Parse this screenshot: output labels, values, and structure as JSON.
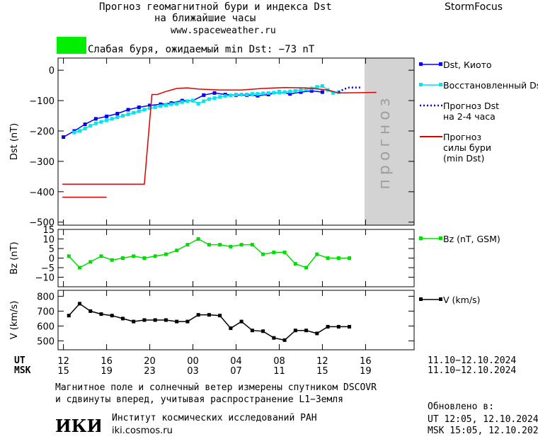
{
  "header": {
    "title_line1": "Прогноз геомагнитной бури и индекса Dst",
    "title_line2": "на ближайшие часы",
    "url": "www.spaceweather.ru",
    "brand": "StormFocus",
    "storm_text": "Слабая буря, ожидаемый min Dst: −73 nT",
    "storm_color": "#00ee00"
  },
  "footer": {
    "line1": "Магнитное поле и солнечный ветер измерены спутником DSCOVR",
    "line2": "и сдвинуты вперед, учитывая распространение L1−Земля",
    "updated_label": "Обновлено в:",
    "updated_ut": "UT   12:05, 12.10.2024",
    "updated_msk": "MSK 15:05, 12.10.2024",
    "institute": "Институт космических исследований РАН",
    "site": "iki.cosmos.ru",
    "logo_text": "ИКИ"
  },
  "chart_data": [
    {
      "type": "line",
      "ylabel": "Dst (nT)",
      "ylim": [
        -510,
        40
      ],
      "yticks": [
        0,
        -100,
        -200,
        -300,
        -400,
        -500
      ],
      "ytick_labels": [
        "0",
        "−100",
        "−200",
        "−300",
        "−400",
        "−500"
      ],
      "forecast_band": {
        "x": [
          12.0,
          13.75
        ],
        "label": "прогноз",
        "color": "#d3d3d3"
      },
      "series": [
        {
          "name": "Dst, Киото",
          "color": "#0000ff",
          "style": "line-square",
          "x": [
            -0.5,
            0.5,
            1.5,
            2.5,
            3.5,
            4.5,
            5.5,
            6.5,
            7.5,
            8.5,
            9.5,
            10.5,
            11.5,
            12.5,
            13.5,
            14.5,
            15.5,
            16.5,
            17.5,
            18.5,
            19.5,
            20.5,
            21.5,
            22.5,
            23.5
          ],
          "y": [
            -220,
            -200,
            -178,
            -160,
            -152,
            -143,
            -130,
            -122,
            -116,
            -112,
            -108,
            -100,
            -100,
            -82,
            -75,
            -80,
            -82,
            -82,
            -84,
            -80,
            -72,
            -78,
            -72,
            -68,
            -72
          ]
        },
        {
          "name": "Восстановленный Dst",
          "color": "#00e5ee",
          "style": "line-square",
          "x": [
            0.5,
            1.0,
            1.5,
            2.0,
            2.5,
            3.0,
            3.5,
            4.0,
            4.5,
            5.0,
            5.5,
            6.0,
            6.5,
            7.0,
            7.5,
            8.0,
            8.5,
            9.0,
            9.5,
            10.0,
            10.5,
            11.0,
            11.5,
            12.0,
            12.5,
            13.0,
            13.5,
            14.0,
            14.5,
            15.0,
            15.5,
            16.0,
            16.5,
            17.0,
            17.5,
            18.0,
            18.5,
            19.0,
            19.5,
            20.0,
            20.5,
            21.0,
            21.5,
            22.0,
            22.5,
            23.0,
            23.5,
            24.0,
            24.5,
            25.0
          ],
          "y": [
            -205,
            -200,
            -192,
            -183,
            -175,
            -170,
            -165,
            -160,
            -155,
            -150,
            -145,
            -140,
            -135,
            -130,
            -125,
            -122,
            -118,
            -115,
            -112,
            -110,
            -105,
            -102,
            -100,
            -110,
            -102,
            -95,
            -92,
            -88,
            -85,
            -83,
            -80,
            -80,
            -80,
            -78,
            -78,
            -76,
            -75,
            -74,
            -73,
            -72,
            -70,
            -68,
            -65,
            -63,
            -60,
            -55,
            -52,
            -65,
            -75,
            -72
          ]
        },
        {
          "name": "Прогноз Dst\nна 2-4 часа",
          "color": "#0000cc",
          "style": "dotted",
          "x": [
            25.0,
            25.5,
            26.0,
            26.5,
            27.0
          ],
          "y": [
            -72,
            -62,
            -57,
            -57,
            -57
          ]
        },
        {
          "name": "Прогноз\nсилы бури\n(min Dst)",
          "color": "#dd0000",
          "style": "step",
          "x": [
            -0.6,
            3.5,
            7.0,
            7.7,
            8.2,
            9.0,
            10.0,
            11.0,
            12.0,
            14.0,
            16.0,
            18.0,
            20.0,
            22.0,
            24.0,
            25.0,
            28.5
          ],
          "y": [
            -375,
            -375,
            -375,
            -80,
            -80,
            -70,
            -60,
            -58,
            -62,
            -65,
            -65,
            -60,
            -57,
            -58,
            -65,
            -75,
            -73
          ]
        },
        {
          "name": "",
          "color": "#dd0000",
          "style": "line",
          "x": [
            -0.6,
            3.5
          ],
          "y": [
            -418,
            -418
          ]
        }
      ]
    },
    {
      "type": "line",
      "ylabel": "Bz (nT)",
      "ylim": [
        -15,
        15
      ],
      "yticks": [
        15,
        10,
        5,
        0,
        -5,
        -10
      ],
      "ytick_labels": [
        "15",
        "10",
        "5",
        "0",
        "−5",
        "−10"
      ],
      "series": [
        {
          "name": "Bz (nT, GSM)",
          "color": "#00dd00",
          "style": "line-square",
          "x": [
            0,
            1,
            2,
            3,
            4,
            5,
            6,
            7,
            8,
            9,
            10,
            11,
            12,
            13,
            14,
            15,
            16,
            17,
            18,
            19,
            20,
            21,
            22,
            23,
            24,
            25,
            26
          ],
          "y": [
            1,
            -5,
            -2,
            1,
            -1,
            0,
            1,
            0,
            1,
            2,
            4,
            7,
            10,
            7,
            7,
            6,
            7,
            7,
            2,
            3,
            3,
            -3,
            -5,
            2,
            0,
            0,
            0
          ]
        }
      ]
    },
    {
      "type": "line",
      "ylabel": "V (km/s)",
      "ylim": [
        440,
        840
      ],
      "yticks": [
        800,
        700,
        600,
        500
      ],
      "ytick_labels": [
        "800",
        "700",
        "600",
        "500"
      ],
      "series": [
        {
          "name": "V (km/s)",
          "color": "#000000",
          "style": "line-square",
          "x": [
            0,
            1,
            2,
            3,
            4,
            5,
            6,
            7,
            8,
            9,
            10,
            11,
            12,
            13,
            14,
            15,
            16,
            17,
            18,
            19,
            20,
            21,
            22,
            23,
            24,
            25,
            26
          ],
          "y": [
            670,
            750,
            700,
            680,
            670,
            650,
            630,
            640,
            640,
            640,
            630,
            630,
            675,
            675,
            670,
            585,
            630,
            570,
            565,
            520,
            505,
            570,
            570,
            550,
            595,
            595,
            595
          ]
        }
      ]
    }
  ],
  "x_axis": {
    "ut_label": "UT",
    "msk_label": "MSK",
    "ut_ticks": [
      "12",
      "16",
      "20",
      "24",
      "04",
      "08",
      "12",
      "16"
    ],
    "ut_tick_labels": [
      "12",
      "16",
      "20",
      "24",
      "04",
      "08",
      "12",
      "16"
    ],
    "msk_tick_labels": [
      "15",
      "19",
      "23",
      "03",
      "07",
      "11",
      "15",
      "19"
    ],
    "ut_range": "11.10−12.10.2024",
    "msk_range": "11.10−12.10.2024"
  },
  "x_labels_visible": {
    "ut": [
      "12",
      "16",
      "20",
      "00",
      "04",
      "08",
      "12",
      "16"
    ],
    "msk": [
      "15",
      "19",
      "23",
      "03",
      "07",
      "11",
      "15",
      "19"
    ]
  }
}
